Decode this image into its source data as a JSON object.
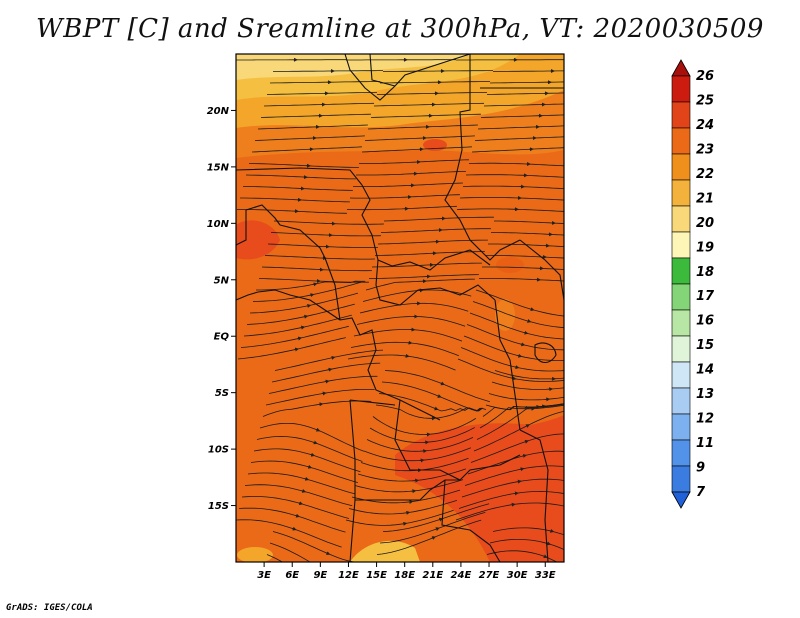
{
  "title": "WBPT [C] and Sreamline at 300hPa, VT: 2020030509",
  "credit": "GrADS: IGES/COLA",
  "map": {
    "lat_labels": [
      "20N",
      "15N",
      "10N",
      "5N",
      "EQ",
      "5S",
      "10S",
      "15S"
    ],
    "lat_values": [
      20,
      15,
      10,
      5,
      0,
      -5,
      -10,
      -15
    ],
    "lon_labels": [
      "3E",
      "6E",
      "9E",
      "12E",
      "15E",
      "18E",
      "21E",
      "24E",
      "27E",
      "30E",
      "33E"
    ],
    "lon_values": [
      3,
      6,
      9,
      12,
      15,
      18,
      21,
      24,
      27,
      30,
      33
    ],
    "lon_range": [
      0,
      35
    ],
    "lat_range": [
      -20,
      25
    ],
    "dominant_field": "orange (22-23 C)",
    "colors": {
      "c19": "#f8d878",
      "c20": "#f5c042",
      "c21": "#f3a62a",
      "c22": "#ef7f1d",
      "c23": "#ea6a18",
      "c24": "#e84b1c"
    }
  },
  "colorbar": {
    "labels": [
      "7",
      "9",
      "11",
      "12",
      "13",
      "14",
      "15",
      "16",
      "17",
      "18",
      "19",
      "20",
      "21",
      "22",
      "23",
      "24",
      "25",
      "26"
    ],
    "colors": [
      "#2060d8",
      "#3a7ce0",
      "#5292e8",
      "#7cb0ee",
      "#a8ccf2",
      "#cfe6f6",
      "#dff4d8",
      "#b8e6a4",
      "#84d478",
      "#3cba3c",
      "#fdf6b6",
      "#f8d878",
      "#f3b23c",
      "#f0901c",
      "#ea6a18",
      "#e04418",
      "#cc1c10",
      "#a8100c"
    ]
  }
}
